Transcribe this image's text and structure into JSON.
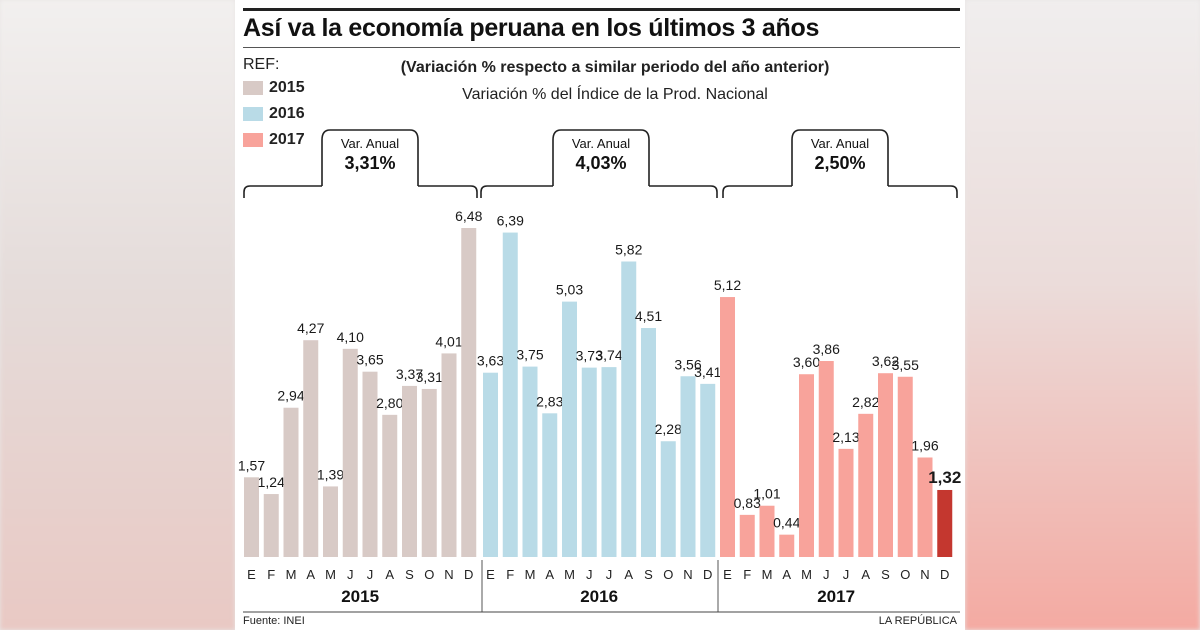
{
  "title": "Así va la economía peruana en los últimos 3 años",
  "subtitle": "(Variación % respecto a similar periodo del año anterior)",
  "subtitle2": "Variación % del Índice de la Prod. Nacional",
  "legend": {
    "label": "REF:",
    "items": [
      {
        "name": "2015",
        "color": "#d8cac6"
      },
      {
        "name": "2016",
        "color": "#b9dbe7"
      },
      {
        "name": "2017",
        "color": "#f8a39b"
      }
    ]
  },
  "annual": [
    {
      "label": "Var. Anual",
      "value": "3,31%"
    },
    {
      "label": "Var. Anual",
      "value": "4,03%"
    },
    {
      "label": "Var. Anual",
      "value": "2,50%"
    }
  ],
  "footer": {
    "source": "Fuente: INEI",
    "brand": "LA REPÚBLICA"
  },
  "chart_data": {
    "type": "bar",
    "categories": [
      "E",
      "F",
      "M",
      "A",
      "M",
      "J",
      "J",
      "A",
      "S",
      "O",
      "N",
      "D"
    ],
    "highlight_color": "#c4372f",
    "series": [
      {
        "name": "2015",
        "color": "#d8cac6",
        "values": [
          1.57,
          1.24,
          2.94,
          4.27,
          1.39,
          4.1,
          3.65,
          2.8,
          3.37,
          3.31,
          4.01,
          6.48
        ],
        "labels": [
          "1,57",
          "1,24",
          "2,94",
          "4,27",
          "1,39",
          "4,10",
          "3,65",
          "2,80",
          "3,37",
          "3,31",
          "4,01",
          "6,48"
        ]
      },
      {
        "name": "2016",
        "color": "#b9dbe7",
        "values": [
          3.63,
          6.39,
          3.75,
          2.83,
          5.03,
          3.73,
          3.74,
          5.82,
          4.51,
          2.28,
          3.56,
          3.41
        ],
        "labels": [
          "3,63",
          "6,39",
          "3,75",
          "2,83",
          "5,03",
          "3,73",
          "3,74",
          "5,82",
          "4,51",
          "2,28",
          "3,56",
          "3,41"
        ]
      },
      {
        "name": "2017",
        "color": "#f8a39b",
        "values": [
          5.12,
          0.83,
          1.01,
          0.44,
          3.6,
          3.86,
          2.13,
          2.82,
          3.62,
          3.55,
          1.96,
          1.32
        ],
        "labels": [
          "5,12",
          "0,83",
          "1,01",
          "0,44",
          "3,60",
          "3,86",
          "2,13",
          "2,82",
          "3,62",
          "3,55",
          "1,96",
          "1,32"
        ]
      }
    ],
    "ylim": [
      0,
      6.5
    ],
    "grid": false
  }
}
